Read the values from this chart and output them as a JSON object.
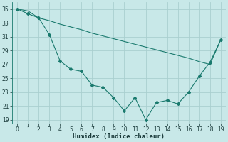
{
  "line1_x": [
    0,
    1,
    2,
    3,
    4,
    5,
    6,
    7,
    8,
    9,
    10,
    11,
    12,
    13,
    14,
    15,
    16,
    17,
    18,
    19
  ],
  "line1_y": [
    35,
    34.7,
    33.7,
    33.3,
    32.8,
    32.4,
    32.0,
    31.5,
    31.1,
    30.7,
    30.3,
    29.9,
    29.5,
    29.1,
    28.7,
    28.3,
    27.9,
    27.4,
    27.0,
    30.5
  ],
  "line2_x": [
    0,
    1,
    2,
    3,
    4,
    5,
    6,
    7,
    8,
    9,
    10,
    11,
    12,
    13,
    14,
    15,
    16,
    17,
    18,
    19
  ],
  "line2_y": [
    35,
    34.3,
    33.7,
    31.3,
    27.5,
    26.3,
    26.0,
    24.0,
    23.7,
    22.2,
    20.3,
    22.2,
    19.0,
    21.5,
    21.8,
    21.3,
    23.0,
    25.3,
    27.3,
    30.5
  ],
  "color": "#1a7a6e",
  "bg_color": "#c8e8e8",
  "grid_color": "#aacfcf",
  "xlabel": "Humidex (Indice chaleur)",
  "yticks": [
    19,
    21,
    23,
    25,
    27,
    29,
    31,
    33,
    35
  ],
  "xticks": [
    0,
    1,
    2,
    3,
    4,
    5,
    6,
    7,
    8,
    9,
    10,
    11,
    12,
    13,
    14,
    15,
    16,
    17,
    18,
    19
  ],
  "ylim": [
    18.5,
    36.0
  ],
  "xlim": [
    -0.5,
    19.5
  ]
}
